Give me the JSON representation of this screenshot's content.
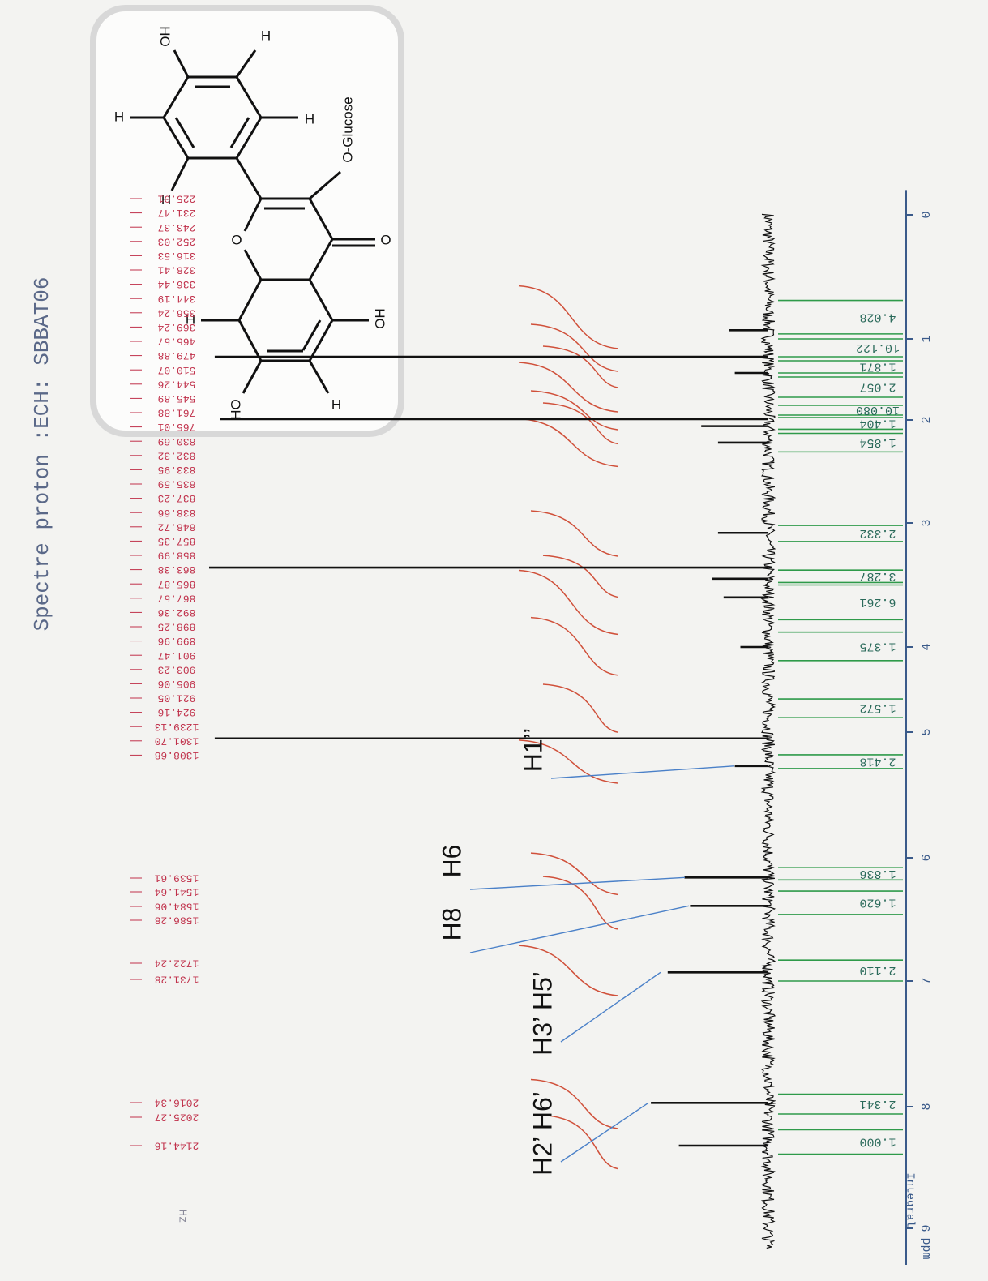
{
  "chart_data": {
    "type": "nmr",
    "title": "Spectre proton :ECH: SBBAT06",
    "x_label": "ppm",
    "integral_label": "Integral",
    "hz_label": "Hz",
    "xlim": [
      -0.2,
      9.3
    ],
    "xticks": [
      0,
      1,
      2,
      3,
      4,
      5,
      6,
      7,
      8,
      9
    ],
    "series": [
      {
        "color": "#111111",
        "x": [
          0.93,
          1.22,
          1.42,
          1.99,
          2.06,
          2.22,
          3.08,
          3.36,
          3.45,
          3.6,
          4.0,
          5.05,
          5.27,
          6.16,
          6.39,
          6.93,
          7.97,
          8.32
        ],
        "values": [
          7,
          99,
          6,
          98,
          12,
          9,
          9,
          100,
          10,
          8,
          5,
          99,
          6,
          15,
          14,
          18,
          21,
          16
        ]
      }
    ],
    "integrals": {
      "color": "#2e9a4a",
      "values": [
        4.028,
        10.122,
        1.871,
        2.057,
        {
          "value": 10.08,
          "label": "10.080"
        },
        1.404,
        1.854,
        2.332,
        3.287,
        6.261,
        1.375,
        1.572,
        2.418,
        1.836,
        {
          "value": 1.62,
          "label": "1.620"
        },
        {
          "value": 2.11,
          "label": "2.110"
        },
        2.341,
        {
          "value": 1,
          "label": "1.000"
        }
      ],
      "ranges": [
        [
          0.69,
          0.96
        ],
        [
          1.0,
          1.22
        ],
        [
          1.27,
          1.42
        ],
        [
          1.47,
          1.72
        ],
        [
          1.82,
          1.94
        ],
        [
          1.97,
          2.09
        ],
        [
          2.13,
          2.31
        ],
        [
          3.02,
          3.15
        ],
        [
          3.38,
          3.48
        ],
        [
          3.5,
          3.78
        ],
        [
          3.88,
          4.16
        ],
        [
          4.61,
          4.83
        ],
        [
          5.18,
          5.29
        ],
        [
          6.08,
          6.18
        ],
        [
          6.27,
          6.46
        ],
        [
          6.83,
          7.0
        ],
        [
          7.9,
          8.06
        ],
        [
          8.19,
          8.39
        ]
      ]
    },
    "hz_labels": {
      "color": "#c0304a",
      "values": [
        225.01,
        231.47,
        243.37,
        252.03,
        316.53,
        328.41,
        336.44,
        344.19,
        356.24,
        369.24,
        465.57,
        479.88,
        510.07,
        544.26,
        545.89,
        761.88,
        765.01,
        830.69,
        832.32,
        833.95,
        835.59,
        837.23,
        838.66,
        848.72,
        857.35,
        858.99,
        863.38,
        865.87,
        867.57,
        892.36,
        898.25,
        899.96,
        901.47,
        903.23,
        905.06,
        921.05,
        924.16,
        1239.13,
        {
          "value": 1301.7,
          "label": "1301.70"
        },
        1308.68,
        1539.61,
        1541.64,
        1584.06,
        1586.28,
        1722.24,
        1731.28,
        2016.34,
        2025.27,
        2144.16
      ]
    },
    "annotations": [
      {
        "text": "H1’’",
        "x": 5.27
      },
      {
        "text": "H6",
        "x": 6.16
      },
      {
        "text": "H8",
        "x": 6.39
      },
      {
        "text": "H3’ H5’",
        "x": 6.93
      },
      {
        "text": "H2’ H6’",
        "x": 7.97
      }
    ]
  },
  "structure": {
    "labels": [
      "OH",
      "H",
      "H",
      "H",
      "H",
      "O-Glucose",
      "O",
      "O",
      "OH",
      "HO",
      "H",
      "H"
    ]
  }
}
